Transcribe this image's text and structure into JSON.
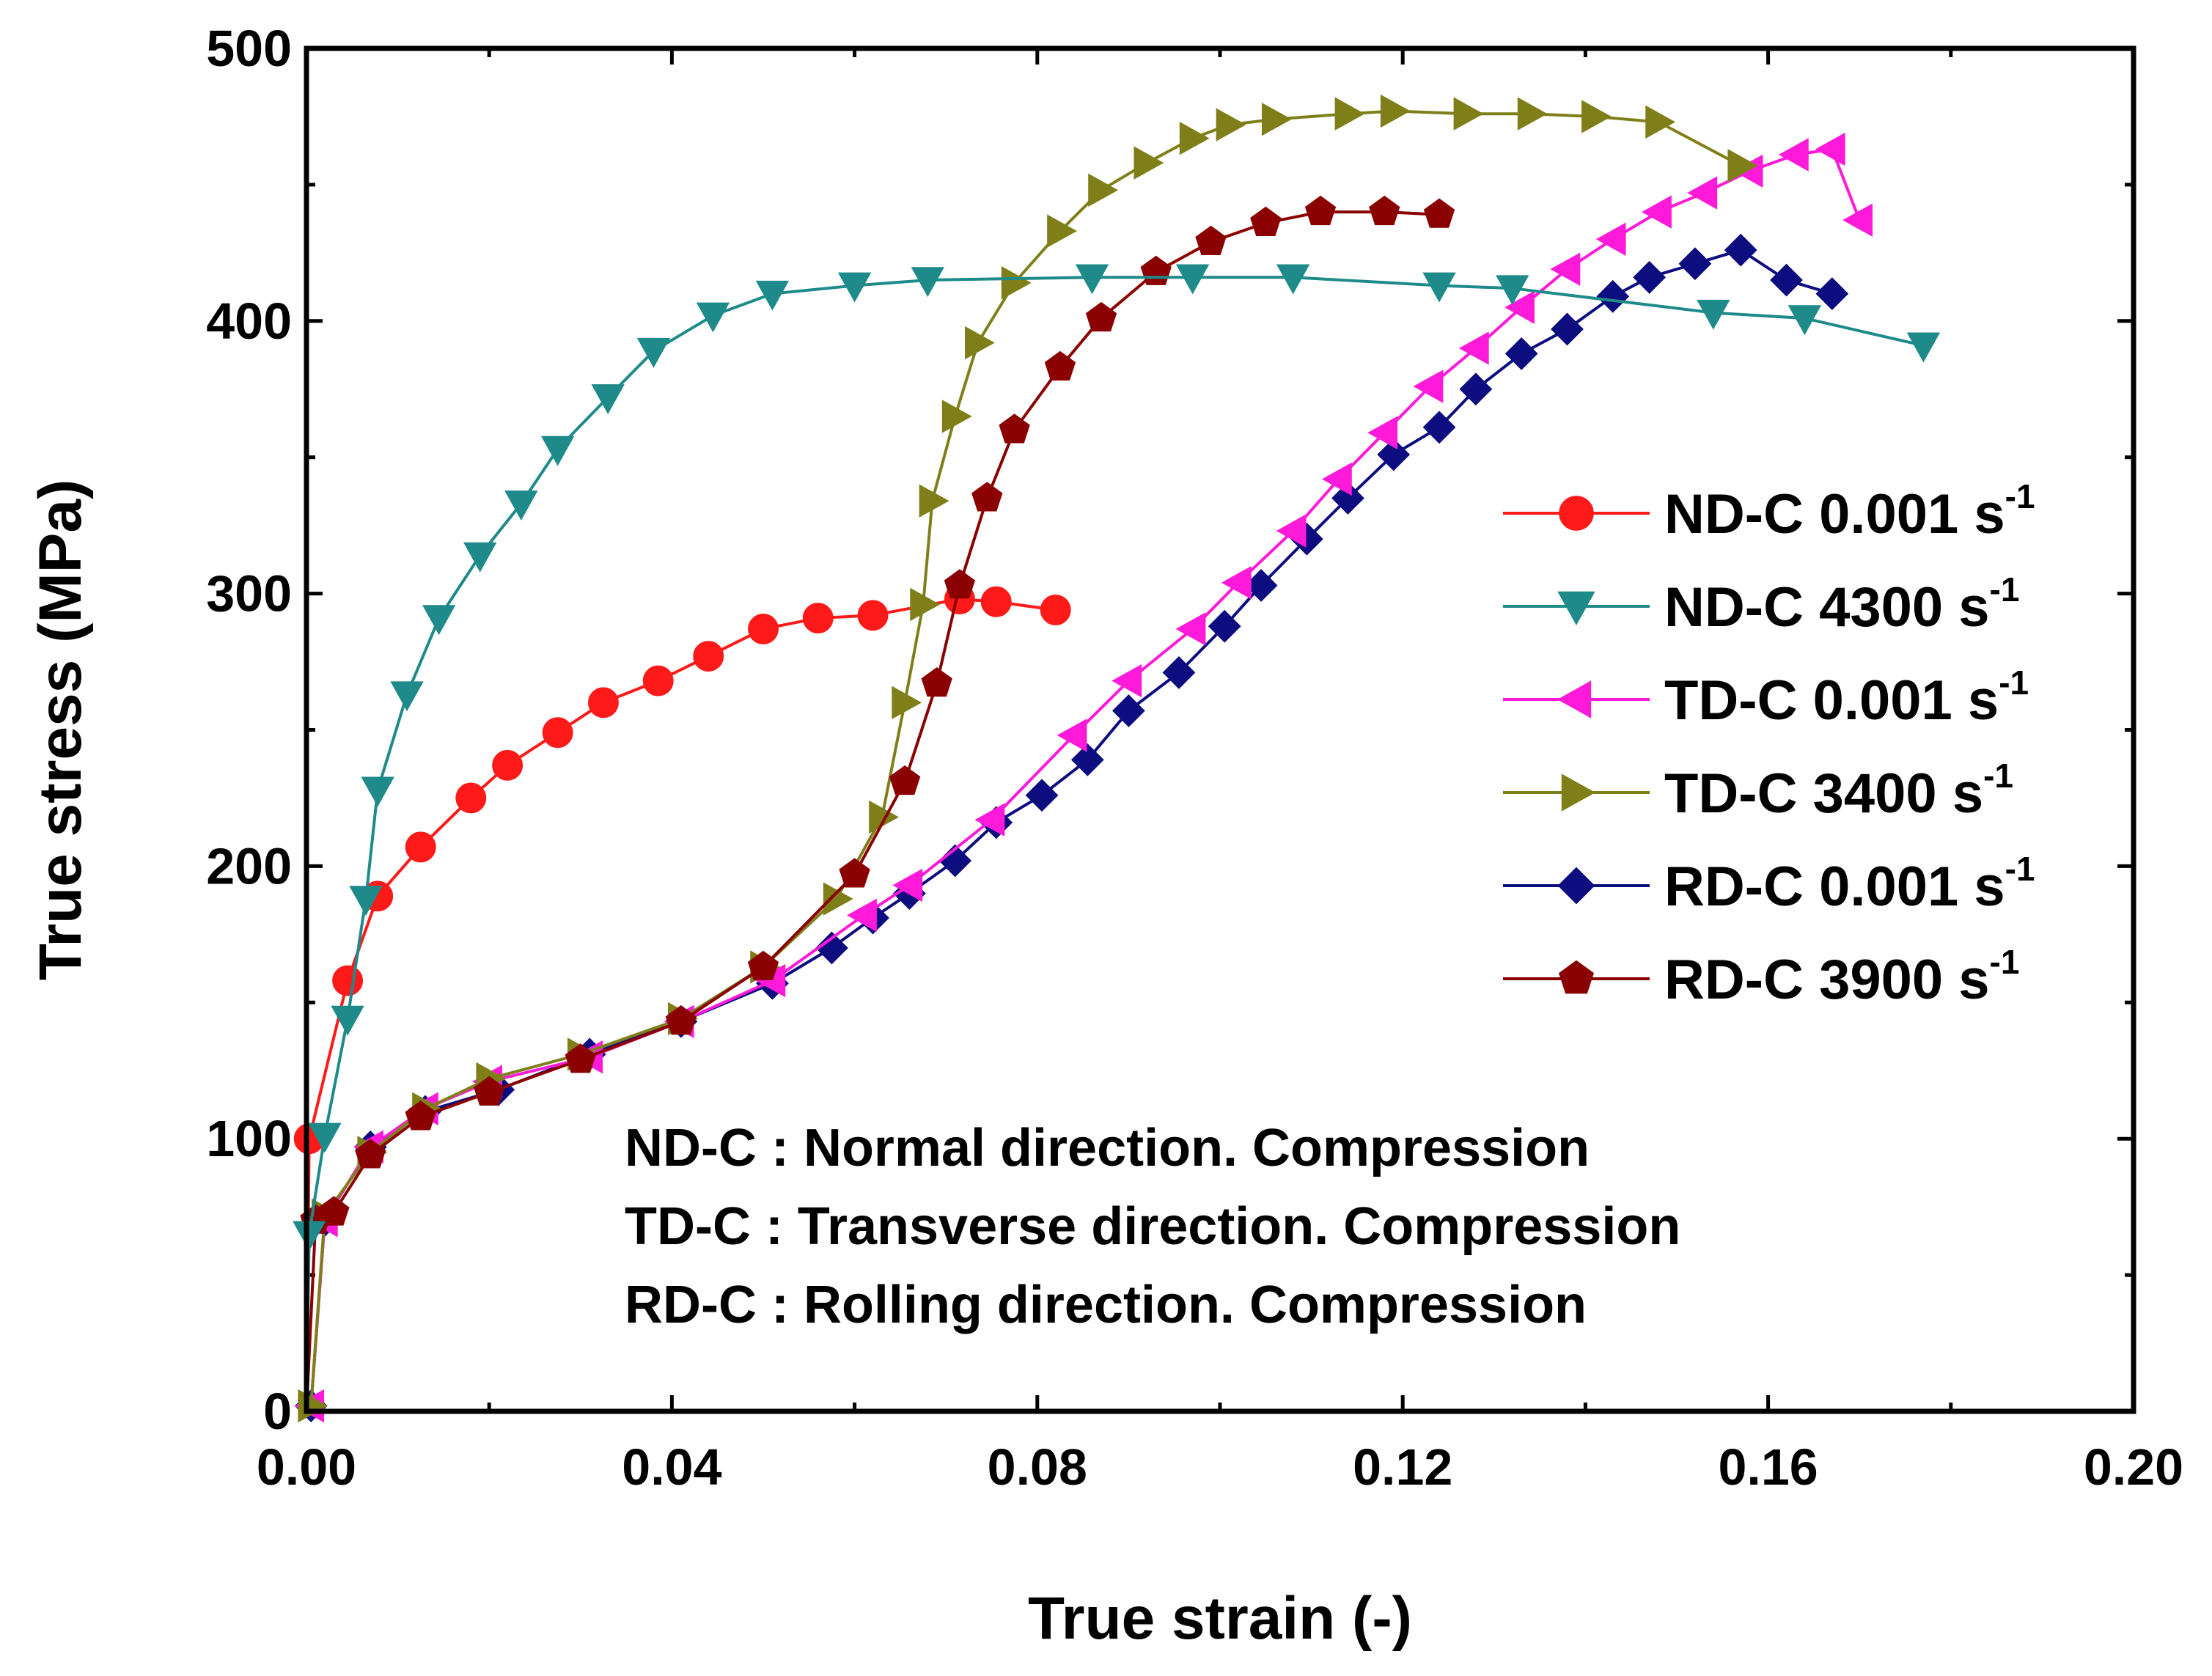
{
  "chart_data": {
    "type": "line",
    "xlabel": "True strain (-)",
    "ylabel": "True stress (MPa)",
    "xlim": [
      0,
      0.2
    ],
    "ylim": [
      0,
      500
    ],
    "x_ticks": [
      "0.00",
      "0.04",
      "0.08",
      "0.12",
      "0.16",
      "0.20"
    ],
    "y_ticks": [
      "0",
      "100",
      "200",
      "300",
      "400",
      "500"
    ],
    "legend_position": "right",
    "series": [
      {
        "name": "ND-C 0.001",
        "unit_base": "s",
        "unit_exp": "-1",
        "color": "#ff1a1a",
        "marker": "circle",
        "x": [
          0.0003,
          0.0045,
          0.0078,
          0.0125,
          0.018,
          0.022,
          0.0275,
          0.0325,
          0.0385,
          0.044,
          0.05,
          0.056,
          0.062,
          0.0715,
          0.0755,
          0.082
        ],
        "y": [
          100,
          158,
          189,
          207,
          225,
          237,
          249,
          260,
          268,
          277,
          287,
          291,
          292,
          298,
          297,
          294
        ]
      },
      {
        "name": "ND-C 4300",
        "unit_base": "s",
        "unit_exp": "-1",
        "color": "#1f8a8a",
        "marker": "triangle-down",
        "x": [
          0.0003,
          0.002,
          0.0045,
          0.0065,
          0.0078,
          0.011,
          0.0145,
          0.019,
          0.0235,
          0.0275,
          0.033,
          0.038,
          0.0445,
          0.051,
          0.06,
          0.068,
          0.086,
          0.097,
          0.108,
          0.124,
          0.132,
          0.154,
          0.164,
          0.177
        ],
        "y": [
          65,
          101,
          144,
          188,
          228,
          263,
          291,
          314,
          333,
          353,
          372,
          389,
          402,
          410,
          413,
          415,
          416,
          416,
          416,
          413,
          412,
          403,
          401,
          391
        ]
      },
      {
        "name": "TD-C 0.001",
        "unit_base": "s",
        "unit_exp": "-1",
        "color": "#ff1ad9",
        "marker": "triangle-left",
        "x": [
          0.0005,
          0.002,
          0.007,
          0.013,
          0.02,
          0.031,
          0.041,
          0.051,
          0.061,
          0.066,
          0.075,
          0.084,
          0.09,
          0.097,
          0.102,
          0.108,
          0.113,
          0.118,
          0.123,
          0.128,
          0.133,
          0.138,
          0.143,
          0.148,
          0.153,
          0.158,
          0.163,
          0.167,
          0.17
        ],
        "y": [
          2,
          70,
          97,
          111,
          121,
          130,
          143,
          158,
          182,
          193,
          217,
          248,
          268,
          287,
          304,
          323,
          342,
          359,
          376,
          390,
          405,
          419,
          430,
          440,
          447,
          455,
          461,
          463,
          437
        ]
      },
      {
        "name": "TD-C 3400",
        "unit_base": "s",
        "unit_exp": "-1",
        "color": "#7f7f1a",
        "marker": "triangle-right",
        "x": [
          0.0005,
          0.002,
          0.007,
          0.013,
          0.02,
          0.03,
          0.041,
          0.05,
          0.058,
          0.063,
          0.0655,
          0.0675,
          0.0685,
          0.071,
          0.0735,
          0.0775,
          0.0825,
          0.087,
          0.092,
          0.097,
          0.101,
          0.106,
          0.114,
          0.119,
          0.127,
          0.134,
          0.141,
          0.148,
          0.157
        ],
        "y": [
          2,
          72,
          95,
          111,
          122,
          131,
          144,
          163,
          188,
          218,
          260,
          296,
          334,
          365,
          392,
          414,
          433,
          448,
          458,
          467,
          472,
          474,
          476,
          477,
          476,
          476,
          475,
          473,
          457
        ]
      },
      {
        "name": "RD-C 0.001",
        "unit_base": "s",
        "unit_exp": "-1",
        "color": "#0d0d80",
        "marker": "diamond",
        "x": [
          0.0005,
          0.002,
          0.007,
          0.013,
          0.021,
          0.031,
          0.041,
          0.051,
          0.0575,
          0.062,
          0.066,
          0.071,
          0.0755,
          0.0805,
          0.0855,
          0.09,
          0.0955,
          0.1005,
          0.1045,
          0.1095,
          0.114,
          0.119,
          0.124,
          0.128,
          0.133,
          0.138,
          0.143,
          0.147,
          0.152,
          0.157,
          0.162,
          0.167
        ],
        "y": [
          2,
          70,
          97,
          110,
          118,
          131,
          143,
          157,
          170,
          181,
          190,
          202,
          216,
          226,
          239,
          257,
          271,
          288,
          303,
          320,
          335,
          351,
          361,
          375,
          388,
          397,
          409,
          416,
          421,
          426,
          415,
          410
        ]
      },
      {
        "name": "RD-C 3900",
        "unit_base": "s",
        "unit_exp": "-1",
        "color": "#8b0000",
        "marker": "pentagon",
        "x": [
          0.001,
          0.003,
          0.007,
          0.0125,
          0.02,
          0.03,
          0.041,
          0.05,
          0.06,
          0.0655,
          0.069,
          0.0715,
          0.0745,
          0.0775,
          0.0825,
          0.087,
          0.093,
          0.099,
          0.105,
          0.111,
          0.118,
          0.124
        ],
        "y": [
          70,
          73,
          94,
          108,
          117,
          129,
          143,
          163,
          197,
          231,
          267,
          303,
          335,
          360,
          383,
          401,
          418,
          429,
          436,
          440,
          440,
          439
        ]
      }
    ],
    "annotations": [
      "ND-C : Normal direction. Compression",
      "TD-C : Transverse direction. Compression",
      "RD-C : Rolling direction. Compression"
    ]
  }
}
